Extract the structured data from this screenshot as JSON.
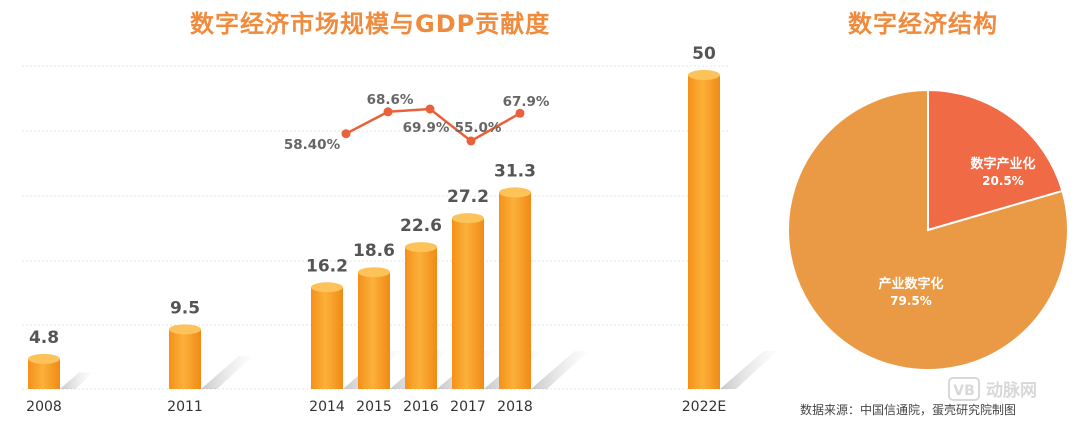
{
  "titles": {
    "left": "数字经济市场规模与GDP贡献度",
    "right": "数字经济结构"
  },
  "source": "数据来源：中国信通院，蛋壳研究院制图",
  "chart_data": [
    {
      "type": "bar",
      "title": "数字经济市场规模与GDP贡献度",
      "categories": [
        "2008",
        "2011",
        "2014",
        "2015",
        "2016",
        "2017",
        "2018",
        "2022E"
      ],
      "series": [
        {
          "values": [
            4.8,
            9.5,
            16.2,
            18.6,
            22.6,
            27.2,
            31.3,
            50
          ]
        }
      ],
      "value_labels": [
        "4.8",
        "9.5",
        "16.2",
        "18.6",
        "22.6",
        "27.2",
        "31.3",
        "50"
      ],
      "ylim": [
        0,
        50
      ],
      "grid": true,
      "colors": {
        "bar": "#f7a21b",
        "bar_top": "#fcc35a",
        "shadow": "#cccccc",
        "grid": "#e6e6e6"
      }
    },
    {
      "type": "line",
      "categories": [
        "2014",
        "2015",
        "2016",
        "2017",
        "2018"
      ],
      "values": [
        58.4,
        68.6,
        69.9,
        55.0,
        67.9
      ],
      "labels": [
        "58.40%",
        "68.6%",
        "69.9%",
        "55.0%",
        "67.9%"
      ],
      "colors": {
        "line": "#e8613a"
      }
    },
    {
      "type": "pie",
      "title": "数字经济结构",
      "slices": [
        {
          "label": "数字产业化",
          "value": 20.5,
          "display": "20.5%",
          "color": "#ef6a45"
        },
        {
          "label": "产业数字化",
          "value": 79.5,
          "display": "79.5%",
          "color": "#ea9a45"
        }
      ]
    }
  ],
  "watermark": {
    "logo_text": "VB",
    "text": "动脉网"
  }
}
